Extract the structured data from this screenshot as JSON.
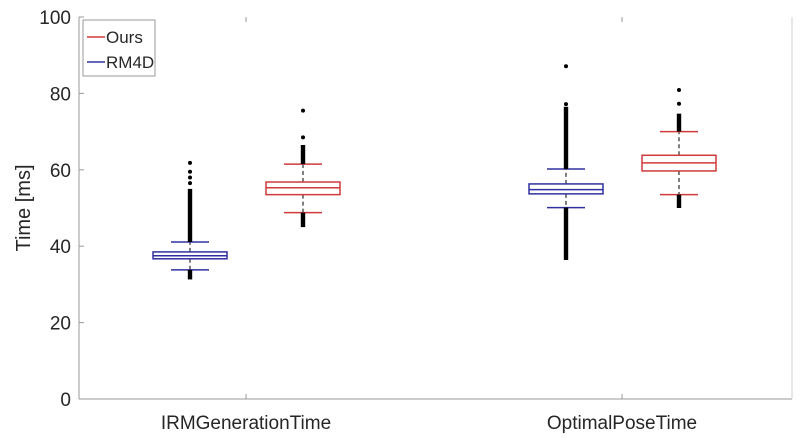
{
  "chart_data": {
    "type": "boxplot",
    "title": "",
    "xlabel": "",
    "ylabel": "Time [ms]",
    "ylim": [
      0,
      100
    ],
    "yticks": [
      "0",
      "20",
      "40",
      "60",
      "80",
      "100"
    ],
    "categories": [
      "IRMGenerationTime",
      "OptimalPoseTime"
    ],
    "legend": {
      "placement": "top-left",
      "entries": [
        "Ours",
        "RM4D"
      ]
    },
    "grid": false,
    "series": [
      {
        "name": "RM4D",
        "color": "#3030a0",
        "boxes": [
          {
            "category": "IRMGenerationTime",
            "whisker_low": 33.8,
            "q1": 36.7,
            "median": 37.5,
            "q3": 38.5,
            "whisker_high": 41.1,
            "outlier_ranges": [
              [
                41.1,
                55
              ],
              [
                31.3,
                33.8
              ]
            ],
            "outliers": [
              56.5,
              58,
              59.5,
              61.8
            ]
          },
          {
            "category": "OptimalPoseTime",
            "whisker_low": 50.1,
            "q1": 53.7,
            "median": 54.8,
            "q3": 56.3,
            "whisker_high": 60.2,
            "outlier_ranges": [
              [
                60.2,
                76.5
              ],
              [
                36.4,
                50.1
              ]
            ],
            "outliers": [
              77.2,
              87.1
            ]
          }
        ]
      },
      {
        "name": "Ours",
        "color": "#d03a3a",
        "boxes": [
          {
            "category": "IRMGenerationTime",
            "whisker_low": 48.8,
            "q1": 53.5,
            "median": 55.3,
            "q3": 56.8,
            "whisker_high": 61.5,
            "outlier_ranges": [
              [
                61.5,
                66.5
              ],
              [
                45,
                48.8
              ]
            ],
            "outliers": [
              68.5,
              75.5
            ]
          },
          {
            "category": "OptimalPoseTime",
            "whisker_low": 53.5,
            "q1": 59.7,
            "median": 61.8,
            "q3": 63.8,
            "whisker_high": 70.0,
            "outlier_ranges": [
              [
                70.0,
                74.7
              ],
              [
                50,
                53.5
              ]
            ],
            "outliers": [
              77.3,
              80.9
            ]
          }
        ]
      }
    ]
  }
}
